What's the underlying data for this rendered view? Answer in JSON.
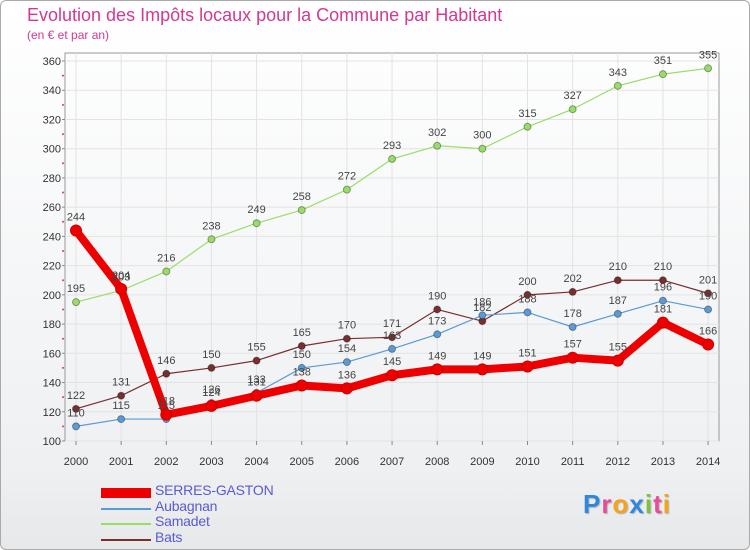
{
  "header": {
    "title": "Evolution des Impôts locaux pour la Commune par Habitant",
    "subtitle": "(en € et par an)"
  },
  "logo": {
    "text": "Proxiti",
    "letters": [
      {
        "ch": "P",
        "color": "#2f87d9"
      },
      {
        "ch": "r",
        "color": "#e84b9a"
      },
      {
        "ch": "o",
        "color": "#f5a31a"
      },
      {
        "ch": "x",
        "color": "#2f87d9"
      },
      {
        "ch": "i",
        "color": "#7cc242"
      },
      {
        "ch": "t",
        "color": "#e84b9a"
      },
      {
        "ch": "i",
        "color": "#f5a31a"
      }
    ]
  },
  "chart_data": {
    "type": "line",
    "title": "Evolution des Impôts locaux pour la Commune par Habitant",
    "ylabel": "(en € et par an)",
    "xlabel": "",
    "x": [
      "2000",
      "2001",
      "2002",
      "2003",
      "2004",
      "2005",
      "2006",
      "2007",
      "2008",
      "2009",
      "2010",
      "2011",
      "2012",
      "2013",
      "2014"
    ],
    "ylim": [
      100,
      360
    ],
    "yticks": [
      100,
      120,
      140,
      160,
      180,
      200,
      220,
      240,
      260,
      280,
      300,
      320,
      340,
      360
    ],
    "legend_position": "bottom-left",
    "series": [
      {
        "name": "SERRES-GASTON",
        "color": "#ee0000",
        "values": [
          244,
          204,
          118,
          124,
          131,
          138,
          136,
          145,
          149,
          149,
          151,
          157,
          155,
          181,
          166
        ],
        "labels": [
          "244",
          "204",
          "118",
          "124",
          "131",
          "138",
          "136",
          "145",
          "149",
          "149",
          "151",
          "157",
          "155",
          "181",
          "166"
        ]
      },
      {
        "name": "Aubagnan",
        "color": "#5b9bd5",
        "values": [
          110,
          115,
          115,
          126,
          133,
          150,
          154,
          163,
          173,
          186,
          188,
          178,
          187,
          196,
          190
        ],
        "labels": [
          "110",
          "115",
          "115",
          "126",
          "133",
          "150",
          "154",
          "163",
          "173",
          "186",
          "188",
          "178",
          "187",
          "196",
          "190"
        ]
      },
      {
        "name": "Samadet",
        "color": "#99dd66",
        "values": [
          195,
          203,
          216,
          238,
          249,
          258,
          272,
          293,
          302,
          300,
          315,
          327,
          343,
          351,
          355
        ],
        "labels": [
          "195",
          "203",
          "216",
          "238",
          "249",
          "258",
          "272",
          "293",
          "302",
          "300",
          "315",
          "327",
          "343",
          "351",
          "355"
        ]
      },
      {
        "name": "Bats",
        "color": "#7a2e2e",
        "values": [
          122,
          131,
          146,
          150,
          155,
          165,
          170,
          171,
          190,
          182,
          200,
          202,
          210,
          210,
          201
        ],
        "labels": [
          "122",
          "131",
          "146",
          "150",
          "155",
          "165",
          "170",
          "171",
          "190",
          "182",
          "200",
          "202",
          "210",
          "210",
          "201"
        ]
      }
    ]
  }
}
